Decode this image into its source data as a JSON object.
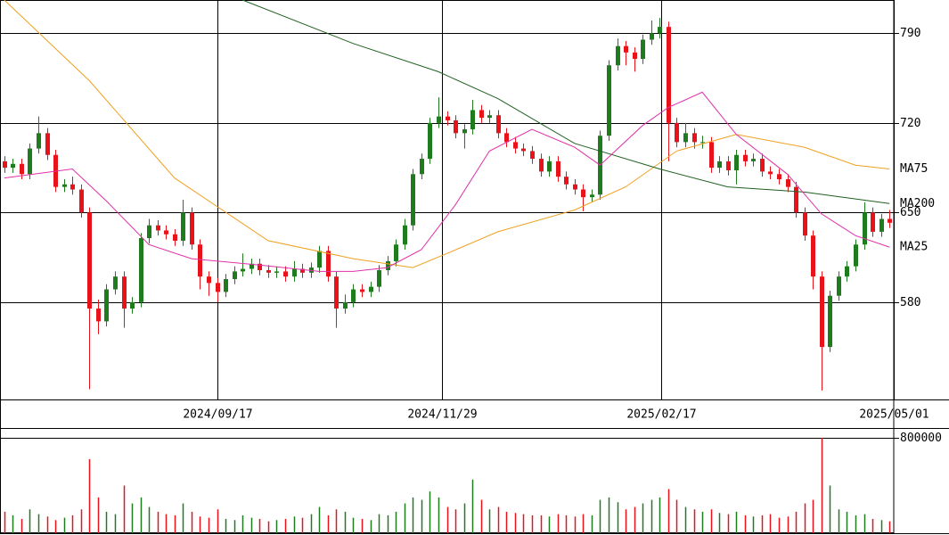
{
  "chart_data": {
    "type": "candlestick",
    "up_color": "#1e7b1e",
    "down_color": "#e8131a",
    "xlim": [
      -0.5,
      104.5
    ],
    "xticks": [
      {
        "value": 25,
        "label": "2024/09/17"
      },
      {
        "value": 51.4,
        "label": "2024/11/29"
      },
      {
        "value": 77.2,
        "label": "2025/02/17"
      },
      {
        "value": 104.5,
        "label": "2025/05/01"
      }
    ],
    "ylim": [
      504,
      816
    ],
    "yticks": [
      580,
      650,
      720,
      790
    ],
    "grid": true,
    "open": [
      690,
      685,
      688,
      680,
      700,
      712,
      695,
      670,
      672,
      668,
      650,
      575,
      565,
      590,
      600,
      575,
      580,
      630,
      640,
      636,
      633,
      628,
      650,
      625,
      600,
      595,
      588,
      598,
      604,
      606,
      610,
      605,
      603,
      604,
      600,
      606,
      603,
      607,
      620,
      600,
      575,
      580,
      590,
      588,
      592,
      605,
      612,
      625,
      640,
      680,
      692,
      720,
      725,
      722,
      712,
      715,
      730,
      724,
      726,
      712,
      705,
      700,
      698,
      692,
      682,
      690,
      678,
      672,
      668,
      662,
      664,
      710,
      765,
      780,
      775,
      770,
      785,
      790,
      795,
      720,
      705,
      712,
      705,
      705,
      685,
      690,
      683,
      695,
      690,
      692,
      682,
      680,
      676,
      670,
      650,
      632,
      600,
      545,
      585,
      600,
      608,
      625,
      650,
      635,
      645
    ],
    "high": [
      694,
      692,
      692,
      704,
      725,
      716,
      699,
      676,
      678,
      672,
      654,
      582,
      594,
      604,
      604,
      584,
      634,
      645,
      644,
      640,
      637,
      660,
      654,
      629,
      604,
      599,
      602,
      608,
      618,
      614,
      614,
      609,
      608,
      608,
      612,
      610,
      611,
      624,
      624,
      604,
      586,
      594,
      594,
      596,
      609,
      616,
      629,
      645,
      684,
      696,
      724,
      740,
      729,
      726,
      719,
      738,
      734,
      730,
      730,
      716,
      709,
      704,
      702,
      696,
      694,
      694,
      682,
      676,
      672,
      668,
      714,
      769,
      786,
      784,
      779,
      789,
      800,
      802,
      799,
      724,
      720,
      716,
      710,
      709,
      694,
      694,
      699,
      699,
      696,
      696,
      686,
      684,
      680,
      674,
      654,
      636,
      604,
      589,
      604,
      612,
      629,
      658,
      654,
      649,
      652
    ],
    "low": [
      681,
      681,
      676,
      676,
      696,
      691,
      666,
      666,
      664,
      646,
      512,
      555,
      561,
      586,
      560,
      571,
      576,
      626,
      632,
      629,
      624,
      624,
      621,
      590,
      585,
      580,
      584,
      594,
      600,
      602,
      601,
      599,
      599,
      596,
      596,
      599,
      599,
      603,
      596,
      560,
      571,
      576,
      584,
      584,
      588,
      601,
      608,
      621,
      636,
      676,
      688,
      716,
      718,
      708,
      700,
      711,
      720,
      720,
      708,
      701,
      696,
      694,
      688,
      678,
      678,
      674,
      668,
      664,
      651,
      658,
      660,
      706,
      761,
      765,
      760,
      766,
      781,
      786,
      690,
      701,
      701,
      700,
      700,
      681,
      681,
      679,
      672,
      686,
      686,
      678,
      676,
      672,
      666,
      646,
      628,
      590,
      511,
      541,
      581,
      596,
      604,
      621,
      631,
      631,
      638
    ],
    "close": [
      685,
      688,
      680,
      700,
      712,
      695,
      670,
      672,
      668,
      650,
      575,
      565,
      590,
      600,
      575,
      580,
      630,
      640,
      636,
      633,
      628,
      650,
      625,
      600,
      595,
      588,
      598,
      604,
      606,
      610,
      605,
      603,
      604,
      600,
      606,
      603,
      607,
      620,
      600,
      575,
      580,
      590,
      588,
      592,
      605,
      612,
      625,
      640,
      680,
      692,
      720,
      725,
      722,
      712,
      715,
      730,
      724,
      726,
      712,
      705,
      700,
      698,
      692,
      682,
      690,
      678,
      672,
      668,
      662,
      664,
      710,
      765,
      780,
      775,
      770,
      785,
      790,
      795,
      720,
      705,
      712,
      705,
      705,
      685,
      690,
      683,
      695,
      690,
      692,
      682,
      680,
      676,
      670,
      650,
      632,
      600,
      545,
      585,
      600,
      608,
      625,
      650,
      635,
      645,
      642
    ],
    "lines": [
      {
        "name": "MA75",
        "color": "#f0a020",
        "x": [
          0,
          10,
          20,
          31,
          41,
          48,
          52,
          58,
          67,
          73,
          79,
          86,
          94,
          100,
          104
        ],
        "values": [
          816,
          753,
          677,
          628,
          614,
          607,
          618,
          635,
          652,
          670,
          698,
          711,
          701,
          687,
          684
        ]
      },
      {
        "name": "MA200",
        "color": "#206020",
        "x": [
          28,
          41,
          51,
          58,
          67,
          77,
          85,
          94,
          104
        ],
        "values": [
          816,
          782,
          760,
          739,
          704,
          684,
          670,
          666,
          657
        ]
      },
      {
        "name": "MA25",
        "color": "#e030a8",
        "x": [
          0,
          8,
          12,
          17,
          22,
          30,
          37,
          41,
          45,
          49,
          53,
          57,
          62,
          67,
          70,
          75,
          78,
          82,
          86,
          92,
          96,
          100,
          104
        ],
        "values": [
          677,
          684,
          659,
          625,
          614,
          609,
          604,
          604,
          607,
          621,
          656,
          698,
          715,
          701,
          687,
          718,
          732,
          744,
          711,
          680,
          649,
          632,
          623
        ]
      }
    ],
    "volume": {
      "ylim": [
        0,
        882000
      ],
      "yticks": [
        800000
      ],
      "values": [
        180000,
        150000,
        120000,
        200000,
        160000,
        140000,
        110000,
        130000,
        150000,
        200000,
        620000,
        300000,
        180000,
        160000,
        400000,
        250000,
        300000,
        220000,
        180000,
        160000,
        150000,
        250000,
        180000,
        140000,
        130000,
        200000,
        120000,
        110000,
        150000,
        130000,
        120000,
        100000,
        110000,
        120000,
        140000,
        130000,
        160000,
        220000,
        150000,
        200000,
        180000,
        130000,
        120000,
        110000,
        160000,
        150000,
        180000,
        250000,
        300000,
        280000,
        350000,
        300000,
        220000,
        200000,
        250000,
        450000,
        280000,
        200000,
        220000,
        180000,
        170000,
        160000,
        150000,
        150000,
        140000,
        160000,
        150000,
        140000,
        160000,
        150000,
        280000,
        300000,
        260000,
        200000,
        220000,
        250000,
        280000,
        300000,
        370000,
        280000,
        220000,
        200000,
        180000,
        200000,
        170000,
        160000,
        180000,
        150000,
        140000,
        150000,
        160000,
        130000,
        140000,
        180000,
        250000,
        280000,
        800000,
        400000,
        200000,
        180000,
        150000,
        160000,
        120000,
        110000,
        100000
      ]
    }
  }
}
